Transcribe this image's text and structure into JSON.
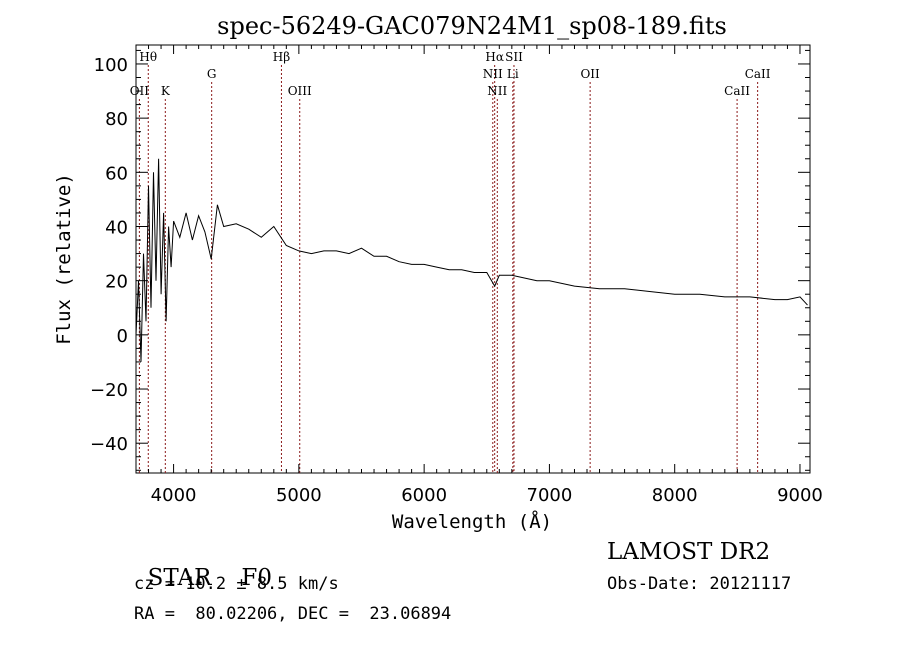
{
  "chart_data": {
    "type": "line",
    "title": "spec-56249-GAC079N24M1_sp08-189.fits",
    "xlabel": "Wavelength (Å)",
    "ylabel": "Flux (relative)",
    "xlim": [
      3700,
      9080
    ],
    "ylim": [
      -51,
      107
    ],
    "xticks": [
      4000,
      5000,
      6000,
      7000,
      8000,
      9000
    ],
    "yticks": [
      -40,
      -20,
      0,
      20,
      40,
      60,
      80,
      100
    ],
    "grid": false,
    "line_color": "#000000",
    "marker_color": "#8b1a1a",
    "series": [
      {
        "values_note": "",
        "x": [
          3700,
          3720,
          3740,
          3760,
          3780,
          3800,
          3820,
          3840,
          3860,
          3880,
          3900,
          3920,
          3940,
          3960,
          3980,
          4000,
          4050,
          4100,
          4150,
          4200,
          4250,
          4300,
          4350,
          4400,
          4500,
          4600,
          4700,
          4800,
          4900,
          5000,
          5100,
          5200,
          5300,
          5400,
          5500,
          5600,
          5700,
          5800,
          5900,
          6000,
          6100,
          6200,
          6300,
          6400,
          6500,
          6563,
          6600,
          6700,
          6800,
          6900,
          7000,
          7200,
          7400,
          7600,
          7800,
          8000,
          8200,
          8400,
          8600,
          8800,
          8900,
          9000,
          9040,
          9060
        ],
        "y": [
          0,
          20,
          -10,
          30,
          5,
          55,
          10,
          60,
          20,
          65,
          15,
          45,
          5,
          40,
          25,
          42,
          36,
          45,
          35,
          44,
          38,
          28,
          48,
          40,
          41,
          39,
          36,
          40,
          33,
          31,
          30,
          31,
          31,
          30,
          32,
          29,
          29,
          27,
          26,
          26,
          25,
          24,
          24,
          23,
          23,
          18,
          22,
          22,
          21,
          20,
          20,
          18,
          17,
          17,
          16,
          15,
          15,
          14,
          14,
          13,
          13,
          14,
          12,
          11
        ]
      }
    ],
    "lines": [
      {
        "label": "Hθ",
        "wavelength": 3798,
        "row": "top"
      },
      {
        "label": "OII",
        "wavelength": 3727,
        "row": "bottom"
      },
      {
        "label": "K",
        "wavelength": 3934,
        "row": "bottom"
      },
      {
        "label": "G",
        "wavelength": 4304,
        "row": "middle"
      },
      {
        "label": "Hβ",
        "wavelength": 4861,
        "row": "top"
      },
      {
        "label": "OIII",
        "wavelength": 5007,
        "row": "bottom"
      },
      {
        "label": "Hα",
        "wavelength": 6563,
        "row": "top"
      },
      {
        "label": "NII",
        "wavelength": 6548,
        "row": "middle"
      },
      {
        "label": "NII",
        "wavelength": 6584,
        "row": "bottom"
      },
      {
        "label": "SII",
        "wavelength": 6717,
        "row": "top"
      },
      {
        "label": "Li",
        "wavelength": 6708,
        "row": "middle"
      },
      {
        "label": "OII",
        "wavelength": 7325,
        "row": "middle"
      },
      {
        "label": "CaII",
        "wavelength": 8498,
        "row": "bottom"
      },
      {
        "label": "CaII",
        "wavelength": 8662,
        "row": "middle"
      }
    ]
  },
  "info": {
    "class_label": "STAR",
    "subclass": "F0",
    "survey": "LAMOST DR2",
    "redshift": "cz = 10.2 ± 8.5 km/s",
    "obs_date": "Obs-Date: 20121117",
    "coords": "RA =  80.02206, DEC =  23.06894"
  }
}
